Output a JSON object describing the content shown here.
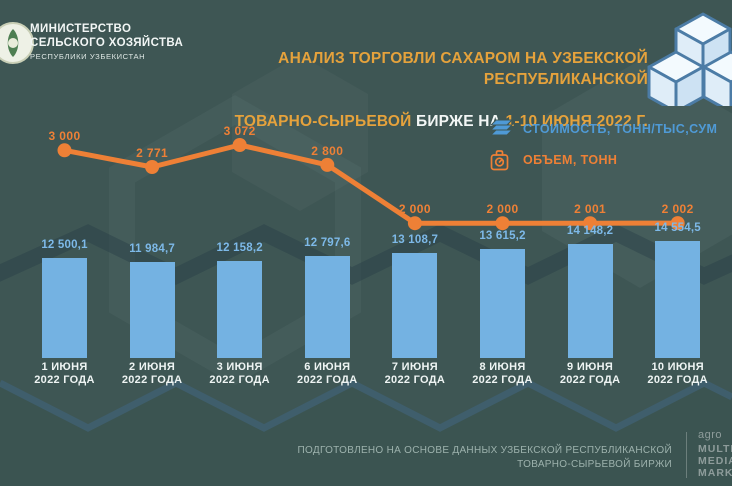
{
  "header": {
    "ministry_name_line1": "МИНИСТЕРСТВО",
    "ministry_name_line2": "СЕЛЬСКОГО ХОЗЯЙСТВА",
    "ministry_sub": "РЕСПУБЛИКИ УЗБЕКИСТАН",
    "title_line1": "АНАЛИЗ ТОРГОВЛИ САХАРОМ НА УЗБЕКСКОЙ РЕСПУБЛИКАНСКОЙ",
    "title_line2_gold1": "ТОВАРНО-СЫРЬЕВОЙ",
    "title_line2_white": " БИРЖЕ НА ",
    "title_line2_gold2": "1-10 ИЮНЯ 2022 Г."
  },
  "legend": {
    "items": [
      {
        "icon": "money-stack-icon",
        "label": "СТОИМОСТЬ, ТОНН/ТЫС,СУМ",
        "color": "#4f9ad6"
      },
      {
        "icon": "scale-icon",
        "label": "ОБЪЕМ, ТОНН",
        "color": "#ee8036"
      }
    ]
  },
  "chart_data": {
    "type": "bar",
    "subtype": "bar-and-line-combo",
    "title": "АНАЛИЗ ТОРГОВЛИ САХАРОМ НА УЗБЕКСКОЙ РЕСПУБЛИКАНСКОЙ ТОВАРНО-СЫРЬЕВОЙ БИРЖЕ НА 1-10 ИЮНЯ 2022 Г.",
    "legend_position": "top-right",
    "grid": false,
    "value_axis_visible": false,
    "categories": [
      {
        "day": "1 ИЮНЯ",
        "year": "2022 ГОДА"
      },
      {
        "day": "2 ИЮНЯ",
        "year": "2022 ГОДА"
      },
      {
        "day": "3 ИЮНЯ",
        "year": "2022 ГОДА"
      },
      {
        "day": "6 ИЮНЯ",
        "year": "2022 ГОДА"
      },
      {
        "day": "7 ИЮНЯ",
        "year": "2022 ГОДА"
      },
      {
        "day": "8 ИЮНЯ",
        "year": "2022 ГОДА"
      },
      {
        "day": "9 ИЮНЯ",
        "year": "2022 ГОДА"
      },
      {
        "day": "10 ИЮНЯ",
        "year": "2022 ГОДА"
      }
    ],
    "series": [
      {
        "name": "СТОИМОСТЬ, ТОНН/ТЫС,СУМ",
        "type": "bar",
        "color": "#74b2e2",
        "values": [
          12500.1,
          11984.7,
          12158.2,
          12797.6,
          13108.7,
          13615.2,
          14148.2,
          14554.5
        ],
        "labels": [
          "12 500,1",
          "11 984,7",
          "12 158,2",
          "12 797,6",
          "13 108,7",
          "13 615,2",
          "14 148,2",
          "14 554,5"
        ]
      },
      {
        "name": "ОБЪЕМ, ТОНН",
        "type": "line",
        "color": "#ee8036",
        "values": [
          3000,
          2771,
          3072,
          2800,
          2000,
          2000,
          2001,
          2002
        ],
        "labels": [
          "3 000",
          "2 771",
          "3 072",
          "2 800",
          "2 000",
          "2 000",
          "2 001",
          "2 002"
        ]
      }
    ]
  },
  "footer": {
    "source_line1": "ПОДГОТОВЛЕНО НА ОСНОВЕ ДАННЫХ УЗБЕКСКОЙ РЕСПУБЛИКАНСКОЙ",
    "source_line2": "ТОВАРНО-СЫРЬЕВОЙ БИРЖИ",
    "logo_top": "agro",
    "logo_line1": "MULTI",
    "logo_line2": "MEDIA",
    "logo_line3": "MARKAZI"
  },
  "colors": {
    "background": "#3e5654",
    "title_gold": "#e5a23c",
    "title_white": "#f2f6f5",
    "bar_blue": "#74b2e2",
    "bar_label_blue": "#7db9e8",
    "line_orange": "#ee8036",
    "legend_blue": "#4f9ad6",
    "footer_text": "#9db2ad"
  }
}
